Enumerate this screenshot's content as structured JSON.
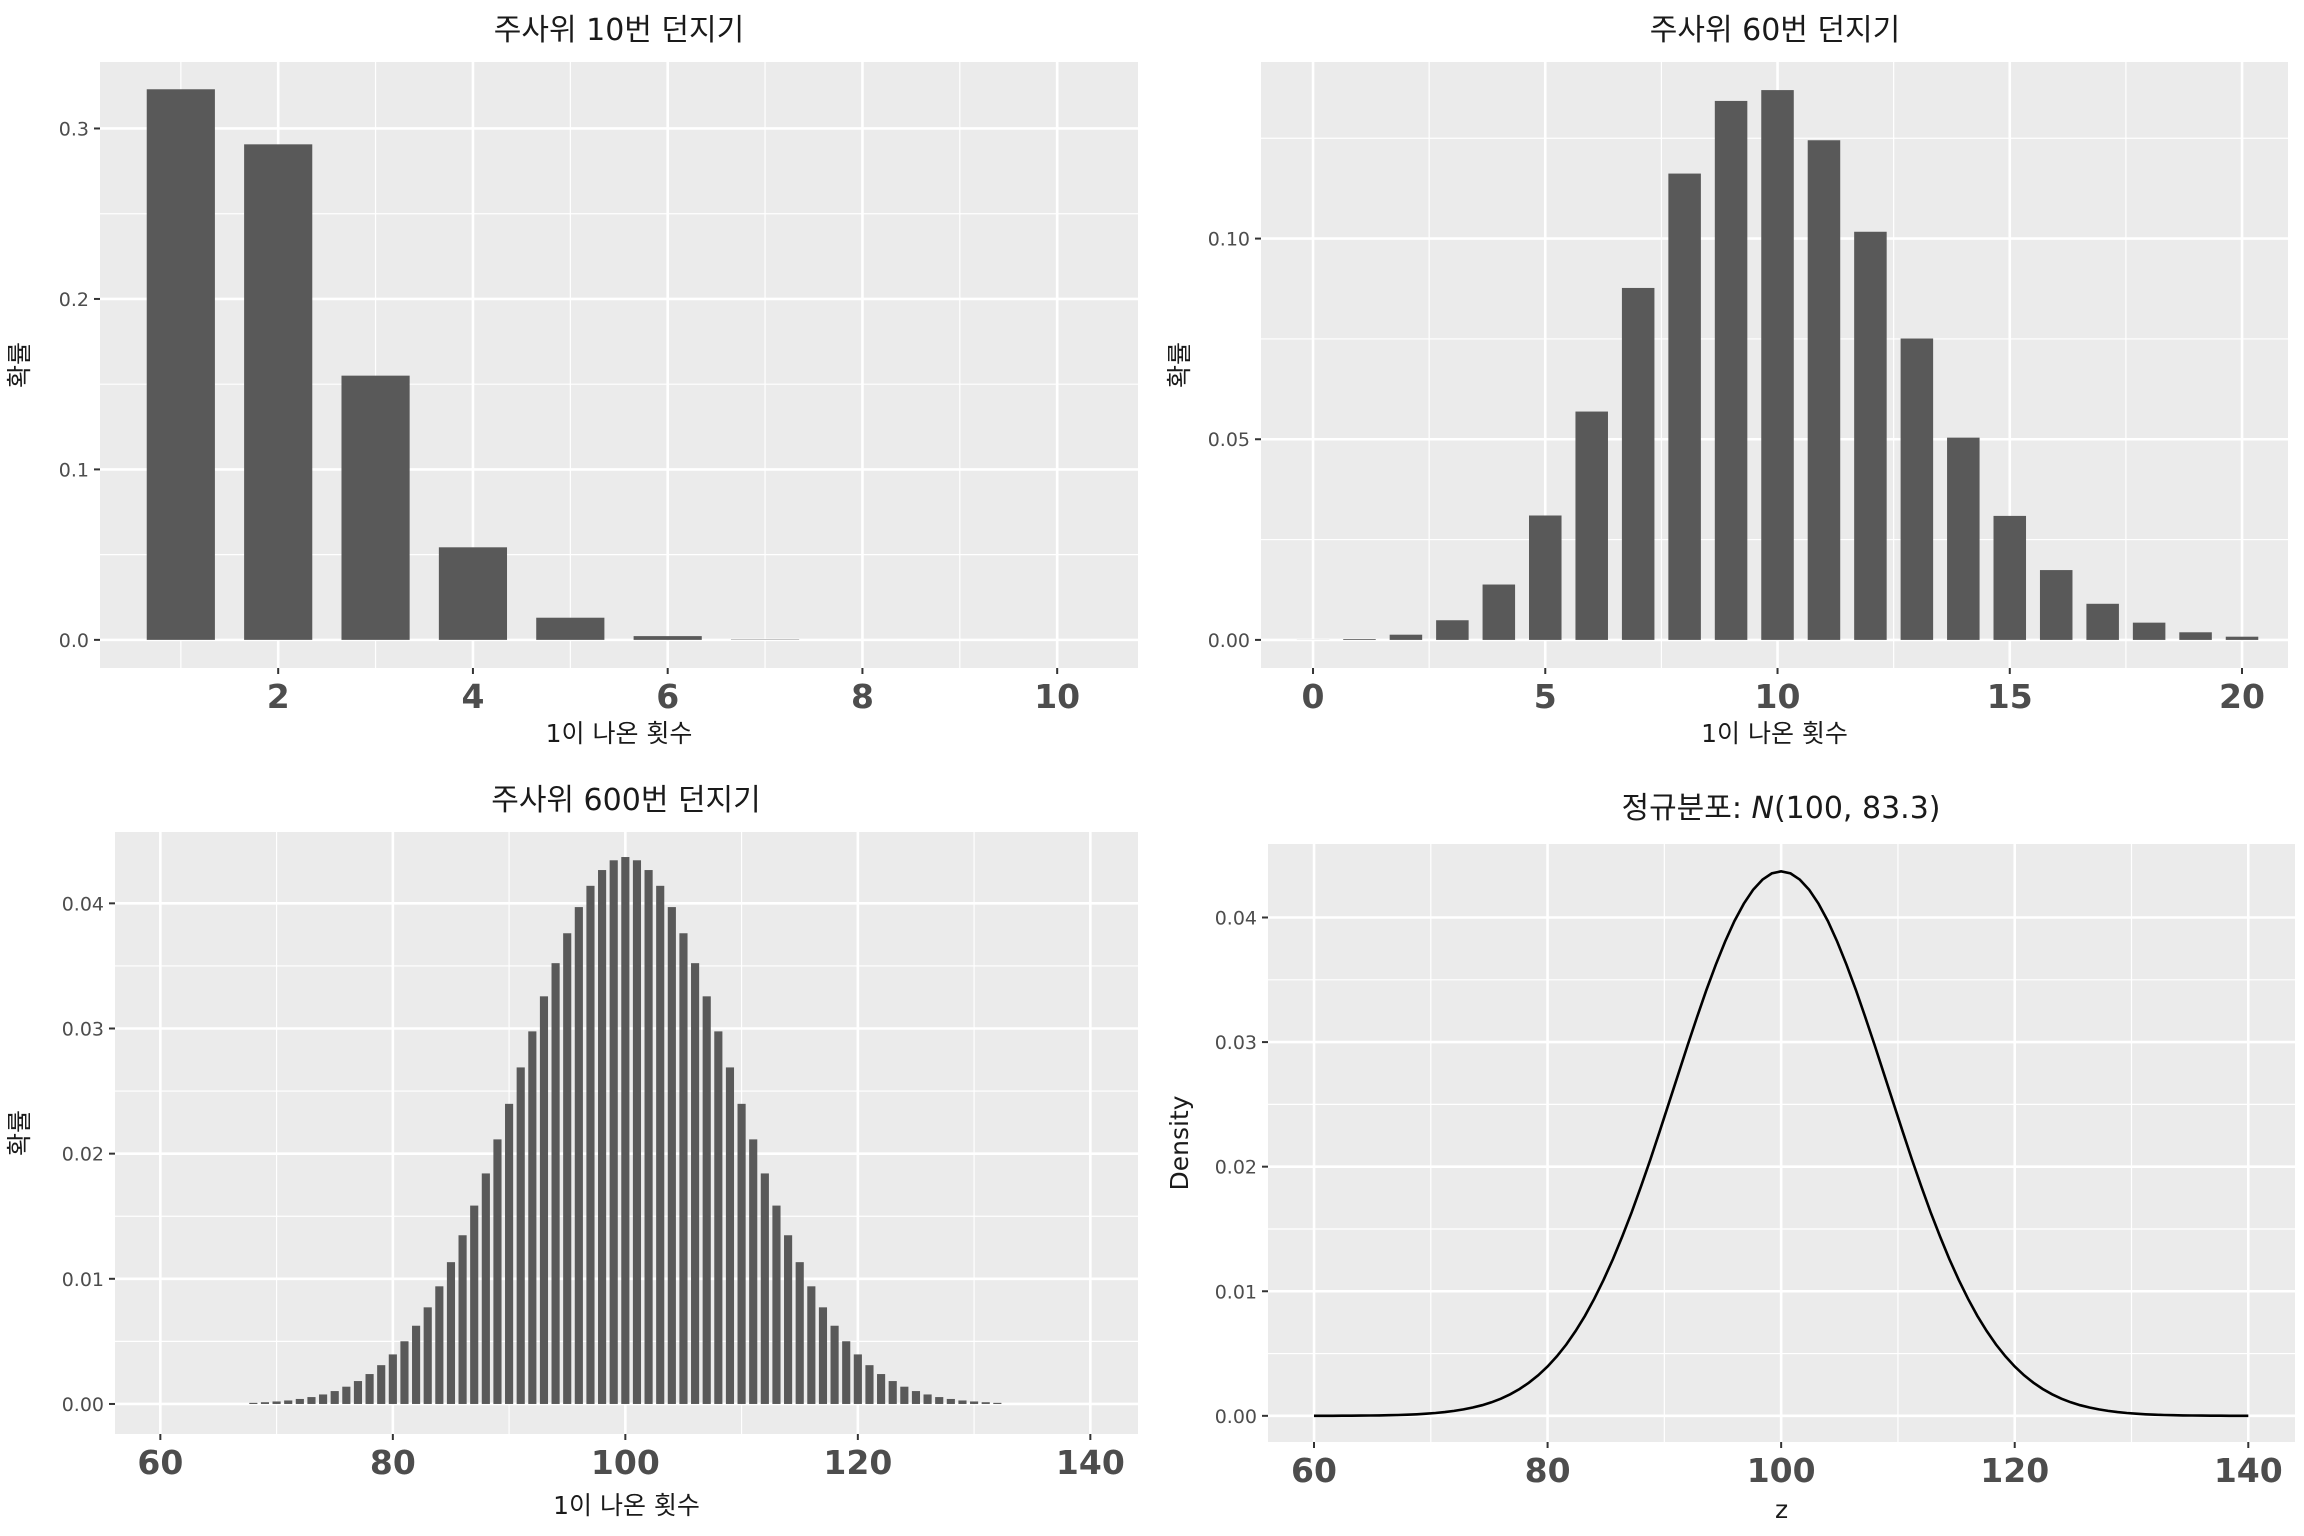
{
  "chart_data": [
    {
      "type": "bar",
      "title": "주사위 10번 던지기",
      "xlabel": "1이 나온 횟수",
      "ylabel": "확률",
      "x": [
        1,
        2,
        3,
        4,
        5,
        6,
        7,
        8,
        9,
        10
      ],
      "values": [
        0.323,
        0.2907,
        0.155,
        0.0543,
        0.013,
        0.0022,
        0.0002,
        0.0,
        0.0,
        0.0
      ],
      "xlim": [
        0.17,
        10.83
      ],
      "ylim": [
        -0.0165,
        0.339
      ],
      "xticks": [
        2,
        4,
        6,
        8,
        10
      ],
      "xticks_minor": [
        1,
        3,
        5,
        7,
        9
      ],
      "yticks": [
        0.0,
        0.1,
        0.2,
        0.3
      ],
      "ytick_labels": [
        "0.0",
        "0.1",
        "0.2",
        "0.3"
      ],
      "yticks_minor": [
        0.05,
        0.15,
        0.25
      ],
      "bar_color": "#595959",
      "panel_bg": "#ebebeb",
      "grid": true
    },
    {
      "type": "bar",
      "title": "주사위 60번 던지기",
      "xlabel": "1이 나온 횟수",
      "ylabel": "확률",
      "x": [
        0,
        1,
        2,
        3,
        4,
        5,
        6,
        7,
        8,
        9,
        10,
        11,
        12,
        13,
        14,
        15,
        16,
        17,
        18,
        19,
        20
      ],
      "values": [
        2e-05,
        0.0002,
        0.0013,
        0.0049,
        0.0138,
        0.031,
        0.0569,
        0.0877,
        0.1162,
        0.1343,
        0.137,
        0.1245,
        0.1017,
        0.0751,
        0.0504,
        0.0309,
        0.0174,
        0.009,
        0.0043,
        0.0019,
        0.0008
      ],
      "xlim": [
        -1.12,
        20.99
      ],
      "ylim": [
        -0.007,
        0.144
      ],
      "xticks": [
        0,
        5,
        10,
        15,
        20
      ],
      "xticks_minor": [
        2.5,
        7.5,
        12.5,
        17.5
      ],
      "yticks": [
        0.0,
        0.05,
        0.1
      ],
      "ytick_labels": [
        "0.00",
        "0.05",
        "0.10"
      ],
      "yticks_minor": [
        0.025,
        0.075,
        0.125
      ],
      "bar_color": "#595959",
      "panel_bg": "#ebebeb",
      "grid": true
    },
    {
      "type": "bar",
      "title": "주사위 600번 던지기",
      "xlabel": "1이 나온 횟수",
      "ylabel": "확률",
      "x": [
        68,
        69,
        70,
        71,
        72,
        73,
        74,
        75,
        76,
        77,
        78,
        79,
        80,
        81,
        82,
        83,
        84,
        85,
        86,
        87,
        88,
        89,
        90,
        91,
        92,
        93,
        94,
        95,
        96,
        97,
        98,
        99,
        100,
        101,
        102,
        103,
        104,
        105,
        106,
        107,
        108,
        109,
        110,
        111,
        112,
        113,
        114,
        115,
        116,
        117,
        118,
        119,
        120,
        121,
        122,
        123,
        124,
        125,
        126,
        127,
        128,
        129,
        130,
        131,
        132
      ],
      "values": [
        9e-05,
        0.00014,
        0.0002,
        0.00028,
        0.0004,
        0.00055,
        0.00076,
        0.00103,
        0.00138,
        0.00183,
        0.00239,
        0.0031,
        0.00396,
        0.00501,
        0.00625,
        0.00772,
        0.0094,
        0.01133,
        0.01348,
        0.01585,
        0.01842,
        0.02114,
        0.02398,
        0.02689,
        0.02977,
        0.03257,
        0.03522,
        0.03761,
        0.0397,
        0.0414,
        0.04266,
        0.04344,
        0.0437,
        0.04344,
        0.04266,
        0.0414,
        0.0397,
        0.03761,
        0.03522,
        0.03257,
        0.02977,
        0.02689,
        0.02398,
        0.02114,
        0.01842,
        0.01585,
        0.01348,
        0.01133,
        0.0094,
        0.00772,
        0.00625,
        0.00501,
        0.00396,
        0.0031,
        0.00239,
        0.00183,
        0.00138,
        0.00103,
        0.00076,
        0.00055,
        0.0004,
        0.00028,
        0.0002,
        0.00014,
        9e-05
      ],
      "xlim": [
        56.1,
        144.1
      ],
      "ylim": [
        -0.0024,
        0.0457
      ],
      "xticks": [
        60,
        80,
        100,
        120,
        140
      ],
      "xticks_minor": [
        70,
        90,
        110,
        130
      ],
      "yticks": [
        0.0,
        0.01,
        0.02,
        0.03,
        0.04
      ],
      "ytick_labels": [
        "0.00",
        "0.01",
        "0.02",
        "0.03",
        "0.04"
      ],
      "yticks_minor": [
        0.005,
        0.015,
        0.025,
        0.035
      ],
      "bar_color": "#595959",
      "panel_bg": "#ebebeb",
      "grid": true
    },
    {
      "type": "line",
      "title": "정규분포: ",
      "title_math": "N",
      "title_params": "(100, 83.3)",
      "xlabel": "z",
      "ylabel": "Density",
      "distribution": {
        "mean": 100,
        "variance": 83.3
      },
      "x_range": [
        60,
        140
      ],
      "xlim": [
        56.06,
        144.0
      ],
      "ylim": [
        -0.0021,
        0.0459
      ],
      "xticks": [
        60,
        80,
        100,
        120,
        140
      ],
      "xticks_minor": [
        70,
        90,
        110,
        130
      ],
      "yticks": [
        0.0,
        0.01,
        0.02,
        0.03,
        0.04
      ],
      "ytick_labels": [
        "0.00",
        "0.01",
        "0.02",
        "0.03",
        "0.04"
      ],
      "yticks_minor": [
        0.005,
        0.015,
        0.025,
        0.035
      ],
      "line_color": "#000000",
      "panel_bg": "#ebebeb",
      "grid": true
    }
  ]
}
